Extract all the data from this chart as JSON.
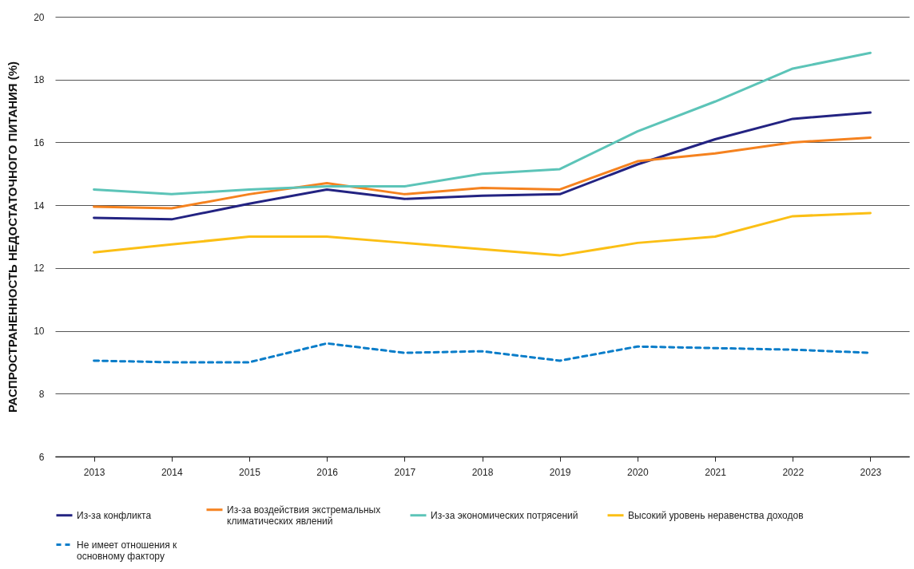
{
  "chart_data": {
    "type": "line",
    "ylabel": "РАСПРОСТРАНЕННОСТЬ НЕДОСТАТОЧНОГО ПИТАНИЯ (%)",
    "categories": [
      "2013",
      "2014",
      "2015",
      "2016",
      "2017",
      "2018",
      "2019",
      "2020",
      "2021",
      "2022",
      "2023"
    ],
    "ylim": [
      6,
      20
    ],
    "yticks": [
      6,
      8,
      10,
      12,
      14,
      16,
      18,
      20
    ],
    "grid": "y",
    "legend": "bottom",
    "series": [
      {
        "name": "Из-за конфликта",
        "color": "#232382",
        "values": [
          13.6,
          13.55,
          14.05,
          14.5,
          14.2,
          14.3,
          14.35,
          15.3,
          16.1,
          16.75,
          16.95
        ]
      },
      {
        "name": "Из-за воздействия экстремальных климатических явлений",
        "color": "#f5821f",
        "values": [
          13.95,
          13.9,
          14.35,
          14.7,
          14.35,
          14.55,
          14.5,
          15.4,
          15.65,
          16.0,
          16.15
        ]
      },
      {
        "name": "Из-за экономических потрясений",
        "color": "#5cc4b8",
        "values": [
          14.5,
          14.35,
          14.5,
          14.6,
          14.6,
          15.0,
          15.15,
          16.35,
          17.3,
          18.35,
          18.85
        ]
      },
      {
        "name": "Высокий уровень неравенства доходов",
        "color": "#fbbf15",
        "values": [
          12.5,
          12.75,
          13.0,
          13.0,
          12.8,
          12.6,
          12.4,
          12.8,
          13.0,
          13.65,
          13.75
        ]
      },
      {
        "name": "Не имеет отношения к основному фактору",
        "color": "#0a7dc9",
        "line_style": "dashed",
        "values": [
          9.05,
          9.0,
          9.0,
          9.6,
          9.3,
          9.35,
          9.05,
          9.5,
          9.45,
          9.4,
          9.3
        ]
      }
    ]
  }
}
